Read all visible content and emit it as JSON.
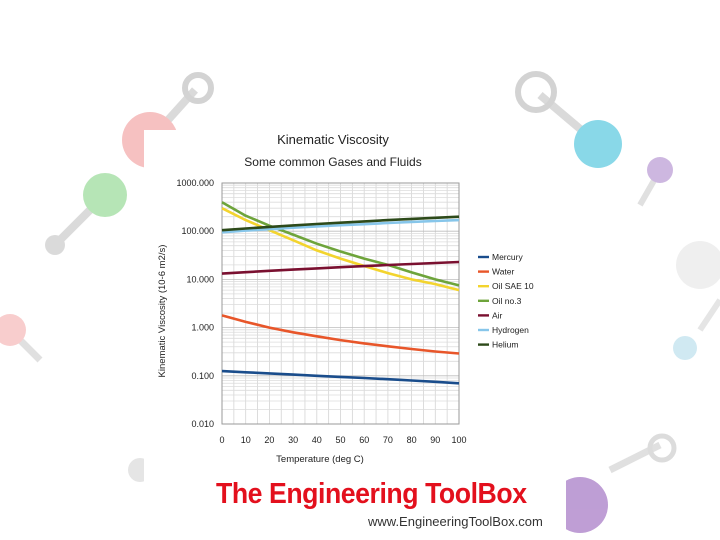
{
  "chart_data": {
    "type": "line",
    "title": "Kinematic Viscosity",
    "subtitle": "Some common Gases and Fluids",
    "xlabel": "Temperature (deg C)",
    "ylabel": "Kinematic Viscosity (10-6 m2/s)",
    "yscale": "log",
    "xlim": [
      0,
      100
    ],
    "ylim": [
      0.01,
      1000
    ],
    "x_ticks": [
      "0",
      "10",
      "20",
      "30",
      "40",
      "50",
      "60",
      "70",
      "80",
      "90",
      "100"
    ],
    "y_ticks": [
      "1000.000",
      "100.000",
      "10.000",
      "1.000",
      "0.100",
      "0.010"
    ],
    "grid": true,
    "legend_position": "right",
    "x": [
      0,
      10,
      20,
      30,
      40,
      50,
      60,
      70,
      80,
      90,
      100
    ],
    "series": [
      {
        "name": "Mercury",
        "color": "#1a4d8c",
        "values": [
          0.125,
          0.118,
          0.112,
          0.106,
          0.1,
          0.095,
          0.09,
          0.085,
          0.08,
          0.075,
          0.07
        ]
      },
      {
        "name": "Water",
        "color": "#e8562a",
        "values": [
          1.79,
          1.31,
          1.0,
          0.8,
          0.66,
          0.55,
          0.47,
          0.41,
          0.36,
          0.32,
          0.29
        ]
      },
      {
        "name": "Oil SAE 10",
        "color": "#f3d42e",
        "values": [
          300,
          170,
          105,
          65,
          40,
          27,
          19,
          13.5,
          10,
          8,
          6
        ]
      },
      {
        "name": "Oil no.3",
        "color": "#6ea43b",
        "values": [
          400,
          210,
          130,
          85,
          55,
          38,
          27,
          20,
          14,
          10,
          7.5
        ]
      },
      {
        "name": "Air",
        "color": "#7a1030",
        "values": [
          13.2,
          14.1,
          15.1,
          16.0,
          16.9,
          17.9,
          18.9,
          19.9,
          20.9,
          21.9,
          23.0
        ]
      },
      {
        "name": "Hydrogen",
        "color": "#87c6ea",
        "values": [
          95,
          103,
          110,
          118,
          126,
          133,
          140,
          148,
          156,
          163,
          170
        ]
      },
      {
        "name": "Helium",
        "color": "#2d4a1a",
        "values": [
          105,
          114,
          123,
          132,
          141,
          150,
          160,
          170,
          180,
          190,
          200
        ]
      }
    ]
  },
  "branding": {
    "name": "The Engineering ToolBox",
    "url": "www.EngineeringToolBox.com"
  },
  "background_colors": [
    "#f08f8f",
    "#7cd07c",
    "#2ab9d6",
    "#a57dc7",
    "#8a4fb3",
    "#f3a6a6",
    "#aad8e8"
  ]
}
